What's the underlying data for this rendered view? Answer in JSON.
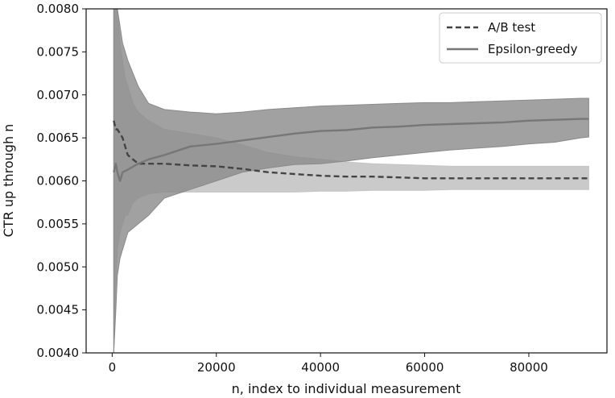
{
  "chart_data": {
    "type": "line",
    "xlabel": "n, index to individual measurement",
    "ylabel": "CTR up through n",
    "xlim": [
      -5000,
      95000
    ],
    "ylim": [
      0.004,
      0.008
    ],
    "x_ticks": [
      0,
      20000,
      40000,
      60000,
      80000
    ],
    "x_tick_labels": [
      "0",
      "20000",
      "40000",
      "60000",
      "80000"
    ],
    "y_ticks": [
      0.004,
      0.0045,
      0.005,
      0.0055,
      0.006,
      0.0065,
      0.007,
      0.0075,
      0.008
    ],
    "y_tick_labels": [
      "0.0040",
      "0.0045",
      "0.0050",
      "0.0055",
      "0.0060",
      "0.0065",
      "0.0070",
      "0.0075",
      "0.0080"
    ],
    "grid": false,
    "legend_position": "top-right",
    "series": [
      {
        "name": "A/B test",
        "line_style": "dashed",
        "color": "#444444",
        "band_color": "#c4c4c4",
        "x": [
          300,
          700,
          1000,
          1500,
          2000,
          2500,
          3000,
          4000,
          5000,
          7000,
          10000,
          15000,
          20000,
          25000,
          30000,
          35000,
          40000,
          45000,
          50000,
          55000,
          60000,
          65000,
          70000,
          75000,
          80000,
          85000,
          90000,
          91500
        ],
        "y": [
          0.0067,
          0.0066,
          0.0066,
          0.00655,
          0.0065,
          0.0064,
          0.0063,
          0.00625,
          0.0062,
          0.0062,
          0.0062,
          0.00618,
          0.00617,
          0.00614,
          0.0061,
          0.00608,
          0.00606,
          0.00605,
          0.00605,
          0.00604,
          0.00603,
          0.00603,
          0.00603,
          0.00603,
          0.00603,
          0.00603,
          0.00603,
          0.00603
        ],
        "lower": [
          0.004,
          0.0048,
          0.0052,
          0.0054,
          0.0055,
          0.0056,
          0.0056,
          0.00575,
          0.0058,
          0.00585,
          0.00587,
          0.00587,
          0.00587,
          0.00587,
          0.00587,
          0.00587,
          0.00588,
          0.00588,
          0.00589,
          0.00589,
          0.00589,
          0.0059,
          0.0059,
          0.0059,
          0.0059,
          0.0059,
          0.0059,
          0.0059
        ],
        "upper": [
          0.008,
          0.008,
          0.008,
          0.0076,
          0.0074,
          0.0072,
          0.0071,
          0.0069,
          0.0068,
          0.0067,
          0.0066,
          0.00655,
          0.0065,
          0.00642,
          0.00633,
          0.00628,
          0.00625,
          0.00622,
          0.0062,
          0.00619,
          0.00618,
          0.00617,
          0.00617,
          0.00617,
          0.00617,
          0.00617,
          0.00617,
          0.00617
        ]
      },
      {
        "name": "Epsilon-greedy",
        "line_style": "solid",
        "color": "#777777",
        "band_color": "#8a8a8a",
        "x": [
          300,
          700,
          1000,
          1500,
          2000,
          3000,
          5000,
          7000,
          10000,
          15000,
          20000,
          25000,
          30000,
          35000,
          40000,
          45000,
          50000,
          55000,
          60000,
          65000,
          70000,
          75000,
          80000,
          85000,
          90000,
          91500
        ],
        "y": [
          0.0061,
          0.0062,
          0.0061,
          0.006,
          0.0061,
          0.00613,
          0.0062,
          0.00625,
          0.0063,
          0.0064,
          0.00643,
          0.00647,
          0.00651,
          0.00655,
          0.00658,
          0.00659,
          0.00662,
          0.00663,
          0.00665,
          0.00666,
          0.00667,
          0.00668,
          0.0067,
          0.00671,
          0.00672,
          0.00672
        ],
        "lower": [
          0.004,
          0.0045,
          0.0049,
          0.0051,
          0.0052,
          0.0054,
          0.0055,
          0.0056,
          0.0058,
          0.0059,
          0.006,
          0.0061,
          0.00615,
          0.00619,
          0.0062,
          0.00623,
          0.00627,
          0.0063,
          0.00633,
          0.00636,
          0.00638,
          0.0064,
          0.00643,
          0.00645,
          0.0065,
          0.00651
        ],
        "upper": [
          0.008,
          0.008,
          0.008,
          0.0078,
          0.0076,
          0.0074,
          0.0071,
          0.0069,
          0.00683,
          0.0068,
          0.00678,
          0.0068,
          0.00683,
          0.00685,
          0.00687,
          0.00688,
          0.00689,
          0.0069,
          0.00691,
          0.00691,
          0.00692,
          0.00693,
          0.00694,
          0.00695,
          0.00696,
          0.00696
        ]
      }
    ]
  }
}
